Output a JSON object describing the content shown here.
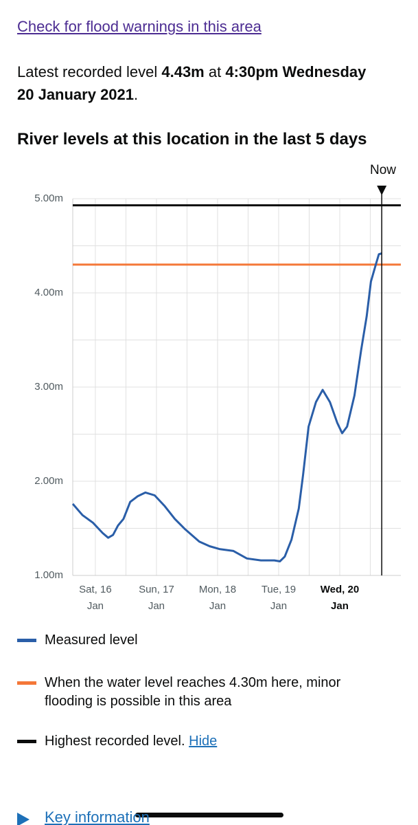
{
  "header": {
    "flood_link": "Check for flood warnings in this area"
  },
  "latest": {
    "prefix": "Latest recorded level",
    "level": "4.43m",
    "at": "at",
    "time": "4:30pm Wednesday 20 January 2021",
    "end": "."
  },
  "chart_data": {
    "type": "line",
    "title": "River levels at this location in the last 5 days",
    "xlim": [
      15.63,
      21.0
    ],
    "ylim": [
      1,
      5
    ],
    "yticks": [
      {
        "value": 5,
        "label": "5.00m"
      },
      {
        "value": 4,
        "label": "4.00m"
      },
      {
        "value": 3,
        "label": "3.00m"
      },
      {
        "value": 2,
        "label": "2.00m"
      },
      {
        "value": 1,
        "label": "1.00m"
      }
    ],
    "xticks": [
      {
        "value": 16,
        "label": "Sat, 16 Jan"
      },
      {
        "value": 17,
        "label": "Sun, 17 Jan"
      },
      {
        "value": 18,
        "label": "Mon, 18 Jan"
      },
      {
        "value": 19,
        "label": "Tue, 19 Jan"
      },
      {
        "value": 20,
        "label": "Wed, 20 Jan"
      }
    ],
    "grid": true,
    "now": {
      "label": "Now",
      "x": 20.6875
    },
    "series": [
      {
        "name": "Measured level",
        "color": "#2a5ea8",
        "x": [
          15.63,
          15.79,
          15.96,
          16.12,
          16.21,
          16.29,
          16.37,
          16.46,
          16.57,
          16.69,
          16.82,
          16.97,
          17.13,
          17.3,
          17.47,
          17.7,
          17.87,
          18.03,
          18.26,
          18.48,
          18.71,
          18.93,
          19.02,
          19.1,
          19.21,
          19.33,
          19.4,
          19.49,
          19.61,
          19.72,
          19.84,
          19.96,
          20.04,
          20.12,
          20.24,
          20.35,
          20.44,
          20.51,
          20.59,
          20.64,
          20.69
        ],
        "values": [
          1.76,
          1.64,
          1.56,
          1.45,
          1.4,
          1.43,
          1.53,
          1.6,
          1.78,
          1.84,
          1.88,
          1.85,
          1.74,
          1.6,
          1.49,
          1.36,
          1.31,
          1.28,
          1.26,
          1.18,
          1.16,
          1.16,
          1.15,
          1.2,
          1.38,
          1.71,
          2.07,
          2.58,
          2.84,
          2.97,
          2.84,
          2.62,
          2.51,
          2.58,
          2.91,
          3.39,
          3.75,
          4.12,
          4.3,
          4.41,
          4.42
        ]
      }
    ],
    "reference_lines": [
      {
        "name": "When the water level reaches 4.30m here, minor flooding is possible in this area",
        "value": 4.3,
        "color": "#f47738"
      },
      {
        "name": "Highest recorded level.",
        "value": 4.93,
        "color": "#0b0c0c"
      }
    ]
  },
  "legend_link": "Hide",
  "key_information": "Key information"
}
